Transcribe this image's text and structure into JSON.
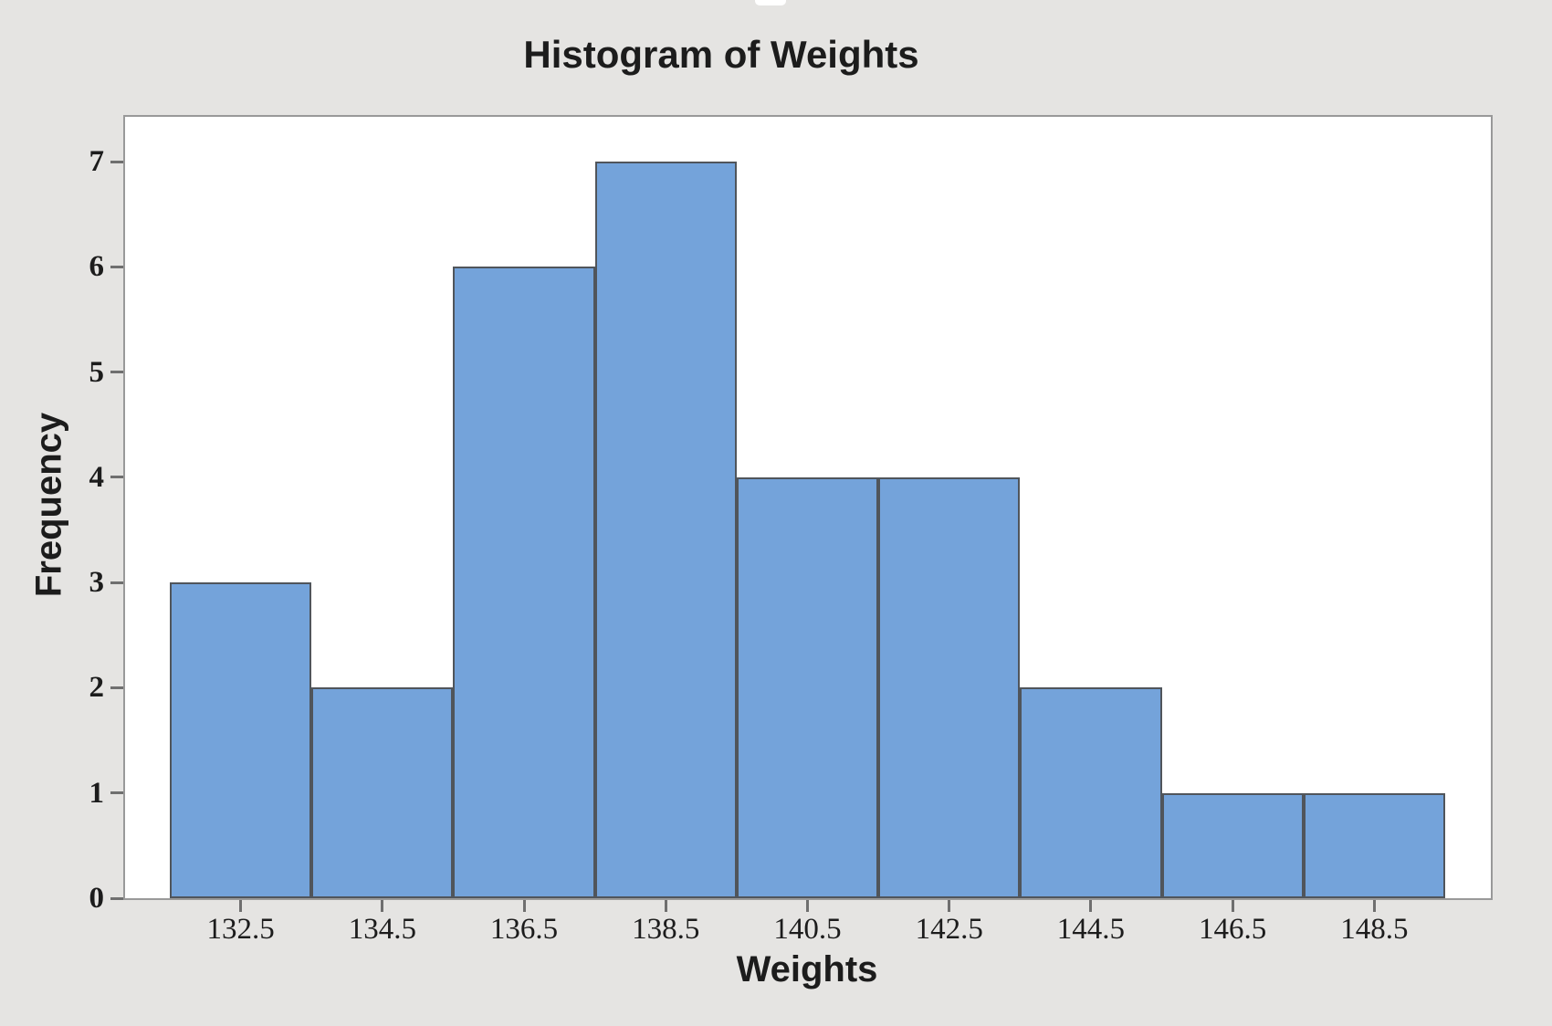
{
  "chart_data": {
    "type": "bar",
    "subtype": "histogram",
    "title": "Histogram of Weights",
    "xlabel": "Weights",
    "ylabel": "Frequency",
    "categories": [
      "132.5",
      "134.5",
      "136.5",
      "138.5",
      "140.5",
      "142.5",
      "144.5",
      "146.5",
      "148.5"
    ],
    "values": [
      3,
      2,
      6,
      7,
      4,
      4,
      2,
      1,
      1
    ],
    "bin_width": 2,
    "bin_edges": [
      131.5,
      133.5,
      135.5,
      137.5,
      139.5,
      141.5,
      143.5,
      145.5,
      147.5,
      149.5
    ],
    "yticks": [
      0,
      1,
      2,
      3,
      4,
      5,
      6,
      7
    ],
    "ylim": [
      0,
      7.44
    ],
    "grid": false,
    "legend_position": "none",
    "colors": {
      "bar_fill": "#74a3da",
      "bar_border": "#50555b",
      "plot_background": "#ffffff",
      "figure_background": "#e5e4e2",
      "plot_border": "#999999",
      "tick": "#6f6f6f",
      "text": "#1c1c1c"
    }
  }
}
